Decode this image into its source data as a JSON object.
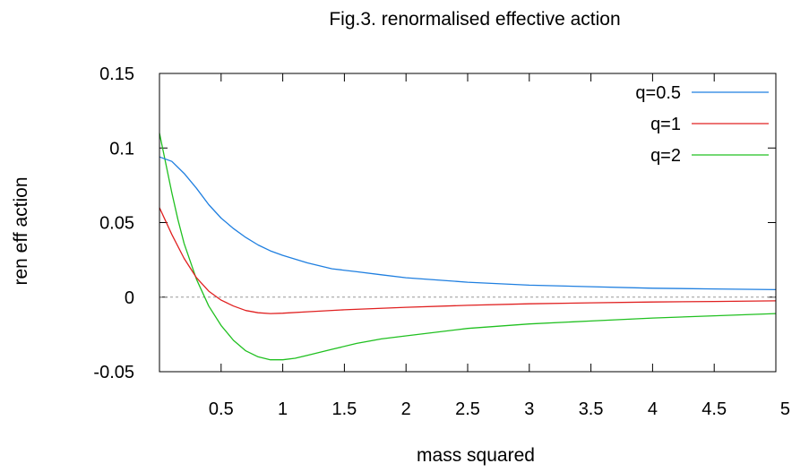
{
  "chart_data": {
    "type": "line",
    "title": "Fig.3. renormalised effective action",
    "xlabel": "mass squared",
    "ylabel": "ren eff action",
    "xlim": [
      0,
      5
    ],
    "ylim": [
      -0.05,
      0.15
    ],
    "x_ticks": [
      0.5,
      1,
      1.5,
      2,
      2.5,
      3,
      3.5,
      4,
      4.5,
      5
    ],
    "x_tick_labels": [
      "0.5",
      "1",
      "1.5",
      "2",
      "2.5",
      "3",
      "3.5",
      "4",
      "4.5",
      "5"
    ],
    "y_ticks": [
      -0.05,
      0,
      0.05,
      0.1,
      0.15
    ],
    "y_tick_labels": [
      "-0.05",
      "0",
      "0.05",
      "0.1",
      "0.15"
    ],
    "zero_line": true,
    "grid": false,
    "legend_position": "top-right",
    "series": [
      {
        "name": "q=0.5",
        "color": "#1f7fe0",
        "x": [
          0.0,
          0.1,
          0.2,
          0.3,
          0.4,
          0.5,
          0.6,
          0.7,
          0.8,
          0.9,
          1.0,
          1.2,
          1.4,
          1.6,
          1.8,
          2.0,
          2.5,
          3.0,
          3.5,
          4.0,
          4.5,
          5.0
        ],
        "y": [
          0.094,
          0.091,
          0.083,
          0.073,
          0.062,
          0.053,
          0.046,
          0.04,
          0.035,
          0.031,
          0.028,
          0.023,
          0.019,
          0.017,
          0.015,
          0.013,
          0.01,
          0.008,
          0.007,
          0.006,
          0.0055,
          0.005
        ]
      },
      {
        "name": "q=1",
        "color": "#e02020",
        "x": [
          0.0,
          0.05,
          0.1,
          0.2,
          0.3,
          0.4,
          0.5,
          0.6,
          0.7,
          0.8,
          0.9,
          1.0,
          1.2,
          1.5,
          2.0,
          2.5,
          3.0,
          3.5,
          4.0,
          4.5,
          5.0
        ],
        "y": [
          0.06,
          0.051,
          0.042,
          0.026,
          0.013,
          0.004,
          -0.002,
          -0.006,
          -0.009,
          -0.0105,
          -0.011,
          -0.0108,
          -0.0098,
          -0.0085,
          -0.0068,
          -0.0055,
          -0.0045,
          -0.0038,
          -0.0033,
          -0.0029,
          -0.0025
        ]
      },
      {
        "name": "q=2",
        "color": "#20c020",
        "x": [
          0.0,
          0.05,
          0.1,
          0.15,
          0.2,
          0.3,
          0.4,
          0.5,
          0.6,
          0.7,
          0.8,
          0.9,
          1.0,
          1.1,
          1.2,
          1.4,
          1.6,
          1.8,
          2.0,
          2.5,
          3.0,
          3.5,
          4.0,
          4.5,
          5.0
        ],
        "y": [
          0.11,
          0.09,
          0.07,
          0.052,
          0.036,
          0.012,
          -0.006,
          -0.019,
          -0.029,
          -0.036,
          -0.04,
          -0.042,
          -0.042,
          -0.041,
          -0.039,
          -0.035,
          -0.031,
          -0.028,
          -0.026,
          -0.021,
          -0.018,
          -0.016,
          -0.014,
          -0.0125,
          -0.011
        ]
      }
    ]
  }
}
